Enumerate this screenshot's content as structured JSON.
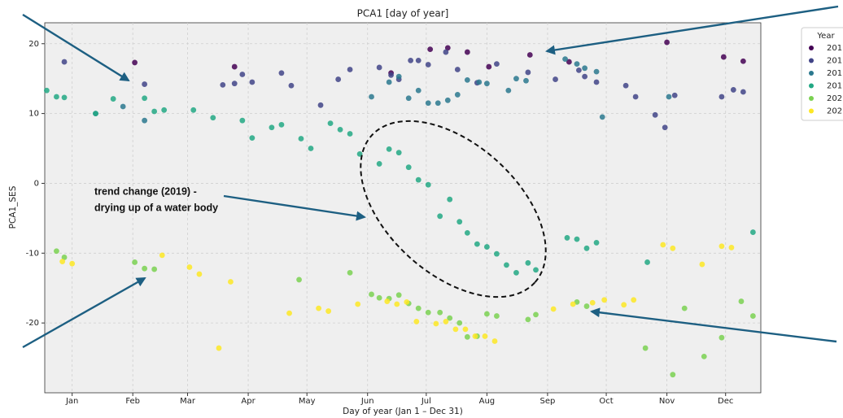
{
  "chart_data": {
    "type": "scatter",
    "title": "PCA1 [day of year]",
    "x_label": "Day of year (Jan 1 – Dec 31)",
    "y_label": "PCA1_SES",
    "xlim": [
      1,
      367
    ],
    "ylim": [
      -30,
      23
    ],
    "xticks": [
      {
        "value": 15,
        "label": "Jan"
      },
      {
        "value": 46,
        "label": "Feb"
      },
      {
        "value": 74,
        "label": "Mar"
      },
      {
        "value": 105,
        "label": "Apr"
      },
      {
        "value": 135,
        "label": "May"
      },
      {
        "value": 166,
        "label": "Jun"
      },
      {
        "value": 196,
        "label": "Jul"
      },
      {
        "value": 227,
        "label": "Aug"
      },
      {
        "value": 258,
        "label": "Sep"
      },
      {
        "value": 288,
        "label": "Oct"
      },
      {
        "value": 319,
        "label": "Nov"
      },
      {
        "value": 349,
        "label": "Dec"
      }
    ],
    "yticks": [
      -20,
      -10,
      0,
      10,
      20
    ],
    "grid": true,
    "legend_title": "Year",
    "legend_position": "outside-right",
    "annotations": [
      "trend change (2019) -",
      "drying up of a water body"
    ],
    "series": [
      {
        "name": "201",
        "color": "#440154",
        "x": [
          47,
          98,
          178,
          198,
          207,
          217,
          228,
          249,
          269,
          319,
          348,
          358
        ],
        "values": [
          17.3,
          16.7,
          15.8,
          19.2,
          19.4,
          18.8,
          16.7,
          18.4,
          17.4,
          20.2,
          18.1,
          17.5
        ]
      },
      {
        "name": "201",
        "color": "#414487",
        "x": [
          11,
          52,
          92,
          98,
          102,
          107,
          122,
          127,
          142,
          151,
          157,
          172,
          178,
          182,
          188,
          192,
          197,
          206,
          212,
          222,
          232,
          248,
          262,
          274,
          277,
          283,
          298,
          303,
          313,
          318,
          323,
          347,
          353,
          358
        ],
        "values": [
          17.4,
          14.2,
          14.1,
          14.3,
          15.6,
          14.5,
          15.8,
          14.0,
          11.2,
          14.9,
          16.3,
          16.6,
          15.5,
          14.9,
          17.6,
          17.6,
          17.0,
          18.8,
          16.3,
          14.4,
          17.1,
          15.9,
          14.9,
          16.2,
          15.3,
          14.5,
          14.0,
          12.4,
          9.8,
          8.0,
          12.6,
          12.4,
          13.4,
          13.1
        ]
      },
      {
        "name": "201",
        "color": "#2a788e",
        "x": [
          27,
          41,
          52,
          168,
          177,
          182,
          187,
          192,
          197,
          202,
          207,
          212,
          217,
          223,
          227,
          238,
          242,
          247,
          267,
          273,
          277,
          283,
          286,
          320
        ],
        "values": [
          10.0,
          11.0,
          9.0,
          12.4,
          14.5,
          15.3,
          12.2,
          13.3,
          11.5,
          11.5,
          11.9,
          12.7,
          14.8,
          14.5,
          14.3,
          13.3,
          15.0,
          14.7,
          17.8,
          17.1,
          16.5,
          16.0,
          9.5,
          12.4
        ]
      },
      {
        "name": "201",
        "color": "#22a884",
        "x": [
          2,
          7,
          11,
          27,
          36,
          52,
          57,
          62,
          77,
          87,
          102,
          107,
          117,
          122,
          132,
          137,
          147,
          152,
          157,
          162,
          172,
          177,
          182,
          187,
          192,
          197,
          203,
          208,
          213,
          217,
          222,
          227,
          232,
          237,
          242,
          248,
          252,
          268,
          273,
          278,
          283,
          309,
          363
        ],
        "values": [
          13.3,
          12.4,
          12.3,
          10.0,
          12.1,
          12.2,
          10.3,
          10.5,
          10.5,
          9.4,
          9.0,
          6.5,
          8.0,
          8.4,
          6.4,
          5.0,
          8.6,
          7.7,
          7.1,
          4.2,
          2.8,
          4.9,
          4.4,
          2.3,
          0.5,
          -0.2,
          -4.7,
          -2.3,
          -5.5,
          -7.1,
          -8.7,
          -9.1,
          -10.1,
          -11.7,
          -12.8,
          -11.4,
          -12.4,
          -7.8,
          -8.0,
          -9.3,
          -8.5,
          -11.3,
          -7.0
        ]
      },
      {
        "name": "202",
        "color": "#7ad151",
        "x": [
          7,
          11,
          47,
          52,
          57,
          131,
          157,
          168,
          172,
          177,
          182,
          187,
          192,
          197,
          203,
          208,
          213,
          217,
          222,
          227,
          232,
          248,
          252,
          273,
          278,
          308,
          322,
          328,
          338,
          347,
          357,
          363
        ],
        "values": [
          -9.7,
          -10.6,
          -11.3,
          -12.2,
          -12.3,
          -13.8,
          -12.8,
          -15.9,
          -16.4,
          -16.5,
          -16.0,
          -17.2,
          -17.9,
          -18.5,
          -18.5,
          -19.3,
          -20.0,
          -22.0,
          -21.9,
          -18.7,
          -19.0,
          -19.5,
          -18.8,
          -17.0,
          -17.6,
          -23.6,
          -27.4,
          -17.9,
          -24.8,
          -22.1,
          -16.9,
          -19.0
        ]
      },
      {
        "name": "202",
        "color": "#fde725",
        "x": [
          10,
          15,
          61,
          75,
          80,
          90,
          96,
          126,
          141,
          146,
          161,
          176,
          181,
          186,
          191,
          201,
          206,
          211,
          216,
          221,
          226,
          231,
          261,
          271,
          281,
          287,
          297,
          302,
          317,
          322,
          337,
          347,
          352
        ],
        "values": [
          -11.2,
          -11.5,
          -10.3,
          -12.0,
          -13.0,
          -23.6,
          -14.1,
          -18.6,
          -17.9,
          -18.3,
          -17.3,
          -16.9,
          -17.3,
          -17.0,
          -19.8,
          -20.1,
          -19.8,
          -20.9,
          -20.9,
          -21.9,
          -21.9,
          -22.6,
          -18.0,
          -17.3,
          -17.1,
          -16.7,
          -17.4,
          -16.7,
          -8.8,
          -9.3,
          -11.6,
          -9.0,
          -9.2
        ]
      }
    ]
  }
}
